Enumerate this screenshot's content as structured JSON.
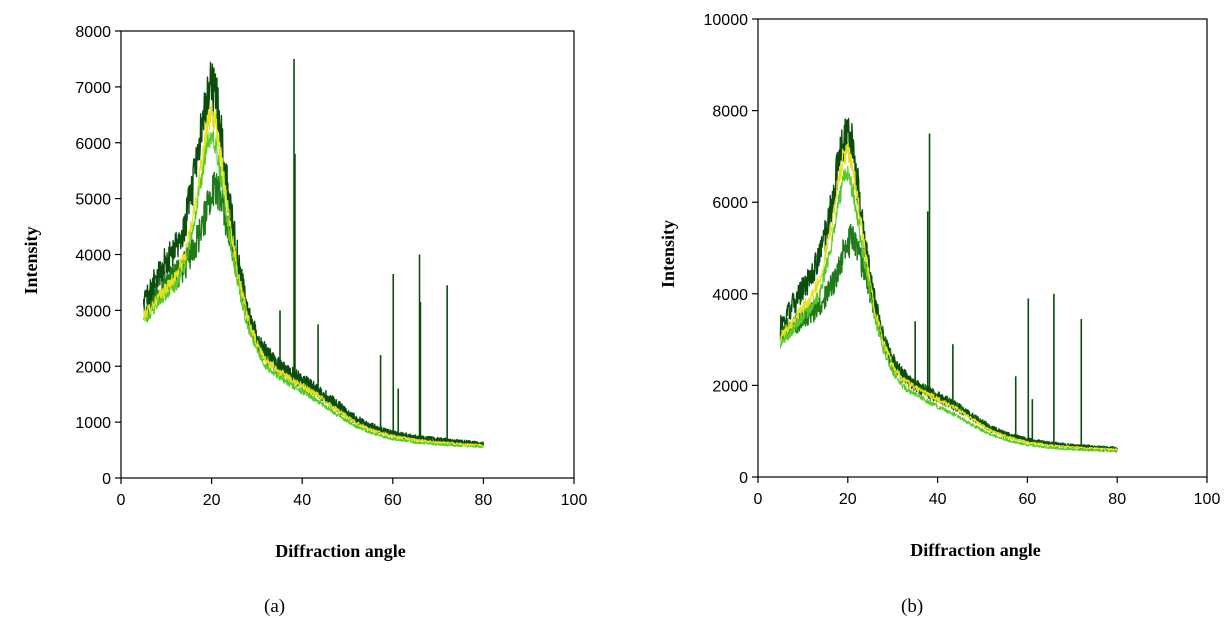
{
  "chart_data": [
    {
      "type": "line",
      "caption": "(a)",
      "xlabel": "Diffraction angle",
      "ylabel": "Intensity",
      "xlim": [
        0,
        100
      ],
      "ylim": [
        0,
        8000
      ],
      "xticks": [
        "0",
        "20",
        "40",
        "60",
        "80",
        "100"
      ],
      "yticks": [
        "0",
        "1000",
        "2000",
        "3000",
        "4000",
        "5000",
        "6000",
        "7000",
        "8000"
      ],
      "grid": false,
      "legend": "none",
      "series": [
        {
          "color": "#0b4d0b",
          "values_x": [
            5,
            8,
            10,
            12,
            14,
            16,
            18,
            19,
            20,
            21,
            22,
            24,
            26,
            28,
            30,
            32,
            35,
            38,
            40,
            44,
            48,
            52,
            56,
            60,
            65,
            70,
            75,
            80
          ],
          "values_y": [
            3150,
            3600,
            3900,
            4100,
            4500,
            5300,
            6400,
            6900,
            7000,
            6800,
            6200,
            4900,
            3800,
            3000,
            2550,
            2250,
            2000,
            1850,
            1750,
            1550,
            1300,
            1050,
            900,
            800,
            720,
            680,
            640,
            600
          ]
        },
        {
          "color": "#1f7a1a",
          "values_x": [
            5,
            8,
            10,
            12,
            14,
            16,
            18,
            19,
            20,
            21,
            22,
            24,
            26,
            28,
            30,
            32,
            35,
            38,
            40,
            44,
            48,
            52,
            56,
            60,
            65,
            70,
            75,
            80
          ],
          "values_y": [
            3050,
            3300,
            3500,
            3600,
            3800,
            4100,
            4500,
            4800,
            5100,
            5200,
            5000,
            4400,
            3600,
            2900,
            2450,
            2150,
            1950,
            1800,
            1700,
            1500,
            1250,
            1020,
            880,
            790,
            710,
            670,
            630,
            600
          ]
        },
        {
          "color": "#e5e21a",
          "values_x": [
            5,
            8,
            10,
            12,
            14,
            16,
            18,
            19,
            20,
            21,
            22,
            24,
            26,
            28,
            30,
            32,
            35,
            38,
            40,
            44,
            48,
            52,
            56,
            60,
            65,
            70,
            75,
            80
          ],
          "values_y": [
            2900,
            3200,
            3400,
            3600,
            3950,
            4700,
            5800,
            6300,
            6500,
            6300,
            5800,
            4600,
            3600,
            2850,
            2400,
            2100,
            1900,
            1750,
            1650,
            1450,
            1200,
            980,
            840,
            750,
            680,
            640,
            610,
            580
          ]
        },
        {
          "color": "#58c82a",
          "values_x": [
            5,
            8,
            10,
            12,
            14,
            16,
            18,
            19,
            20,
            21,
            22,
            24,
            26,
            28,
            30,
            32,
            35,
            38,
            40,
            44,
            48,
            52,
            56,
            60,
            65,
            70,
            75,
            80
          ],
          "values_y": [
            2800,
            3100,
            3300,
            3450,
            3800,
            4500,
            5500,
            6000,
            6100,
            5900,
            5400,
            4300,
            3400,
            2700,
            2300,
            2000,
            1800,
            1650,
            1550,
            1350,
            1120,
            920,
            790,
            700,
            640,
            600,
            580,
            560
          ]
        }
      ],
      "peaks": [
        {
          "x": 35.1,
          "y": 3000
        },
        {
          "x": 38.2,
          "y": 7500
        },
        {
          "x": 38.4,
          "y": 5800
        },
        {
          "x": 43.5,
          "y": 2750
        },
        {
          "x": 57.3,
          "y": 2200
        },
        {
          "x": 60.1,
          "y": 3650
        },
        {
          "x": 61.2,
          "y": 1600
        },
        {
          "x": 65.9,
          "y": 4000
        },
        {
          "x": 66.1,
          "y": 3150
        },
        {
          "x": 72.0,
          "y": 3450
        }
      ]
    },
    {
      "type": "line",
      "caption": "(b)",
      "xlabel": "Diffraction angle",
      "ylabel": "Intensity",
      "xlim": [
        0,
        100
      ],
      "ylim": [
        0,
        10000
      ],
      "xticks": [
        "0",
        "20",
        "40",
        "60",
        "80",
        "100"
      ],
      "yticks": [
        "0",
        "2000",
        "4000",
        "6000",
        "8000",
        "10000"
      ],
      "grid": false,
      "legend": "none",
      "series": [
        {
          "color": "#0b4d0b",
          "values_x": [
            5,
            8,
            10,
            12,
            14,
            16,
            18,
            19,
            20,
            21,
            22,
            24,
            26,
            28,
            30,
            32,
            35,
            38,
            40,
            44,
            48,
            52,
            56,
            60,
            65,
            70,
            75,
            80
          ],
          "values_y": [
            3300,
            3800,
            4100,
            4400,
            4900,
            5700,
            6900,
            7400,
            7500,
            7200,
            6500,
            5000,
            3800,
            3000,
            2550,
            2250,
            2000,
            1850,
            1750,
            1550,
            1300,
            1050,
            900,
            800,
            720,
            680,
            640,
            600
          ]
        },
        {
          "color": "#1f7a1a",
          "values_x": [
            5,
            8,
            10,
            12,
            14,
            16,
            18,
            19,
            20,
            21,
            22,
            24,
            26,
            28,
            30,
            32,
            35,
            38,
            40,
            44,
            48,
            52,
            56,
            60,
            65,
            70,
            75,
            80
          ],
          "values_y": [
            3200,
            3300,
            3500,
            3600,
            3800,
            4100,
            4500,
            4900,
            5100,
            5200,
            5000,
            4400,
            3700,
            3000,
            2500,
            2200,
            2000,
            1850,
            1750,
            1550,
            1300,
            1050,
            900,
            800,
            720,
            680,
            640,
            620
          ]
        },
        {
          "color": "#e5e21a",
          "values_x": [
            5,
            8,
            10,
            12,
            14,
            16,
            18,
            19,
            20,
            21,
            22,
            24,
            26,
            28,
            30,
            32,
            35,
            38,
            40,
            44,
            48,
            52,
            56,
            60,
            65,
            70,
            75,
            80
          ],
          "values_y": [
            3050,
            3450,
            3700,
            3950,
            4400,
            5300,
            6500,
            7000,
            7100,
            6800,
            6200,
            4800,
            3700,
            2900,
            2450,
            2150,
            1950,
            1800,
            1700,
            1500,
            1250,
            1000,
            860,
            760,
            690,
            650,
            620,
            600
          ]
        },
        {
          "color": "#58c82a",
          "values_x": [
            5,
            8,
            10,
            12,
            14,
            16,
            18,
            19,
            20,
            21,
            22,
            24,
            26,
            28,
            30,
            32,
            35,
            38,
            40,
            44,
            48,
            52,
            56,
            60,
            65,
            70,
            75,
            80
          ],
          "values_y": [
            2900,
            3250,
            3500,
            3700,
            4100,
            4900,
            6000,
            6500,
            6600,
            6300,
            5700,
            4500,
            3500,
            2750,
            2300,
            2000,
            1800,
            1650,
            1550,
            1350,
            1120,
            920,
            790,
            700,
            640,
            600,
            580,
            560
          ]
        }
      ],
      "peaks": [
        {
          "x": 35.0,
          "y": 3400
        },
        {
          "x": 37.8,
          "y": 5800
        },
        {
          "x": 38.2,
          "y": 7500
        },
        {
          "x": 43.4,
          "y": 2900
        },
        {
          "x": 57.4,
          "y": 2200
        },
        {
          "x": 60.2,
          "y": 3900
        },
        {
          "x": 61.1,
          "y": 1700
        },
        {
          "x": 65.9,
          "y": 4000
        },
        {
          "x": 72.0,
          "y": 3450
        }
      ]
    }
  ]
}
